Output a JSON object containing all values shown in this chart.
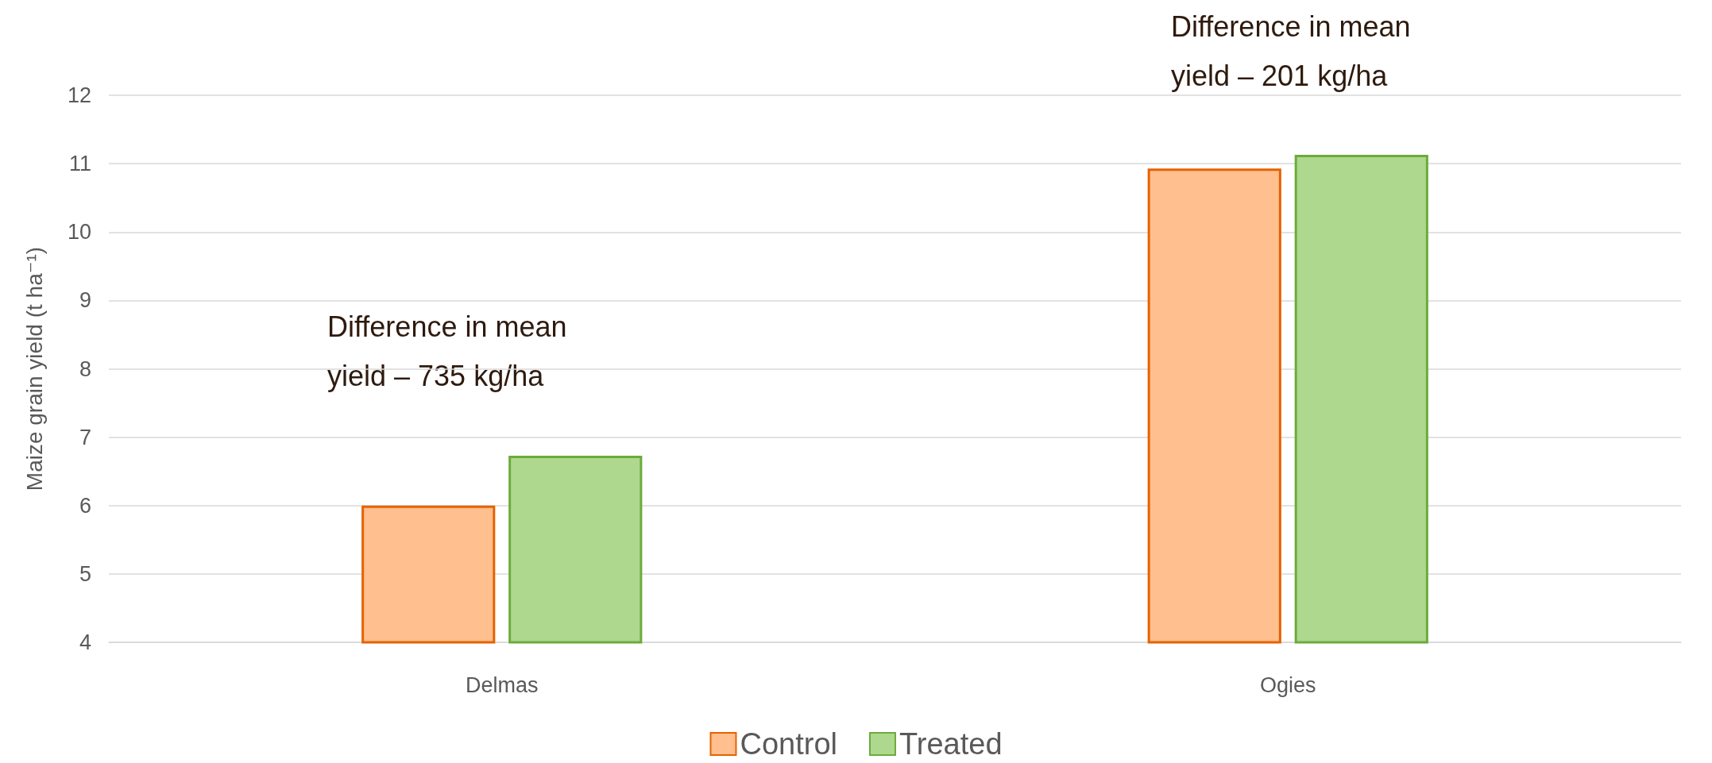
{
  "chart_data": {
    "type": "bar",
    "ylabel": "Maize grain yield (t ha⁻¹)",
    "categories": [
      "Delmas",
      "Ogies"
    ],
    "series": [
      {
        "name": "Control",
        "color": "#ffbf8f",
        "values": [
          6.0,
          10.93
        ]
      },
      {
        "name": "Treated",
        "color": "#aed88e",
        "values": [
          6.73,
          11.13
        ]
      }
    ],
    "ylim": [
      4,
      12
    ],
    "yticks": [
      4,
      5,
      6,
      7,
      8,
      9,
      10,
      11,
      12
    ],
    "grid": "y",
    "legend": "bottom",
    "annotations": [
      "Difference in mean\nyield – 735 kg/ha",
      "Difference in mean\nyield – 201 kg/ha"
    ]
  }
}
